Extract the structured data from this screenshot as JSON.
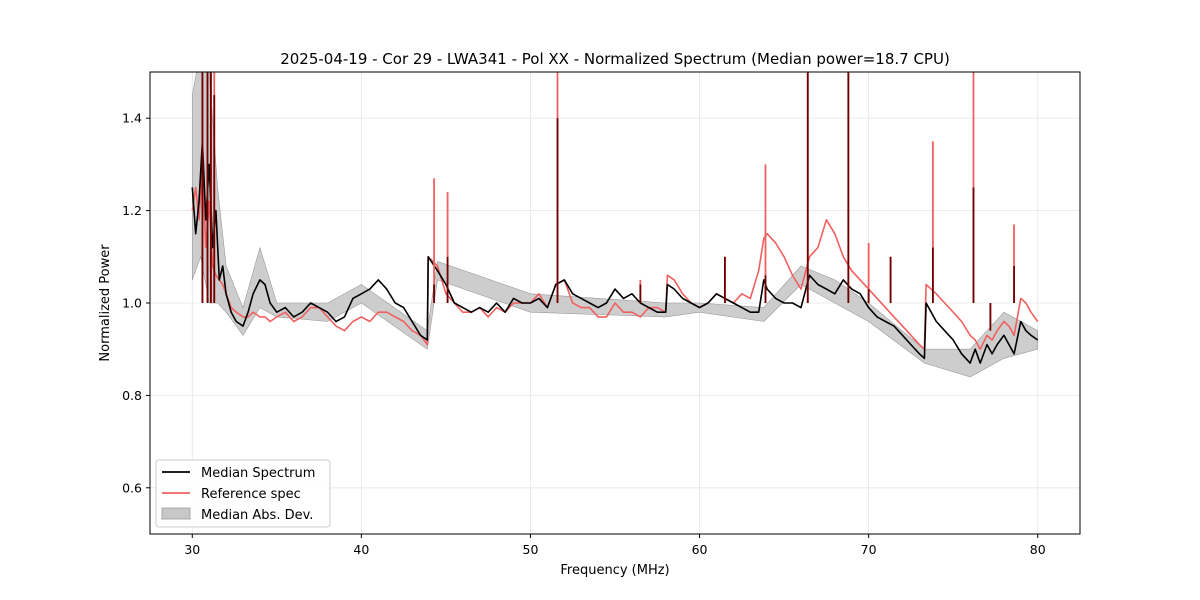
{
  "chart_data": {
    "type": "line",
    "title": "2025-04-19 - Cor 29 - LWA341 - Pol XX - Normalized Spectrum (Median power=18.7 CPU)",
    "xlabel": "Frequency (MHz)",
    "ylabel": "Normalized Power",
    "xlim": [
      27.5,
      82.5
    ],
    "ylim": [
      0.5,
      1.5
    ],
    "xticks": [
      30,
      40,
      50,
      60,
      70,
      80
    ],
    "yticks": [
      0.6,
      0.8,
      1.0,
      1.2,
      1.4
    ],
    "xtick_labels": [
      "30",
      "40",
      "50",
      "60",
      "70",
      "80"
    ],
    "ytick_labels": [
      "0.6",
      "0.8",
      "1.0",
      "1.2",
      "1.4"
    ],
    "grid": true,
    "legend_position": "lower-left",
    "legend": {
      "median": "Median Spectrum",
      "reference": "Reference spec",
      "mad": "Median Abs. Dev."
    },
    "colors": {
      "median": "#000000",
      "reference": "#f0605f",
      "mad_fill": "#c8c8c8",
      "mad_edge": "#9a9a9a",
      "grid": "#e6e6e6",
      "spike_overlap": "#6e0000"
    },
    "series": [
      {
        "name": "Median Spectrum",
        "x": [
          30.0,
          30.2,
          30.4,
          30.6,
          30.8,
          31.0,
          31.2,
          31.4,
          31.6,
          31.8,
          32.0,
          32.3,
          32.6,
          33.0,
          33.3,
          33.6,
          34.0,
          34.3,
          34.6,
          35.0,
          35.5,
          36.0,
          36.5,
          37.0,
          37.5,
          38.0,
          38.5,
          39.0,
          39.5,
          40.0,
          40.5,
          41.0,
          41.5,
          42.0,
          42.5,
          43.0,
          43.5,
          43.9,
          43.95,
          44.5,
          45.0,
          45.5,
          46.0,
          46.5,
          47.0,
          47.5,
          48.0,
          48.5,
          49.0,
          49.5,
          50.0,
          50.5,
          51.0,
          51.5,
          52.0,
          52.5,
          53.0,
          53.5,
          54.0,
          54.5,
          55.0,
          55.5,
          56.0,
          56.5,
          57.0,
          57.5,
          58.0,
          58.1,
          58.5,
          59.0,
          59.5,
          60.0,
          60.5,
          61.0,
          61.5,
          62.0,
          62.5,
          63.0,
          63.5,
          63.8,
          64.0,
          64.5,
          65.0,
          65.5,
          66.0,
          66.5,
          67.0,
          67.5,
          68.0,
          68.5,
          69.0,
          69.5,
          70.0,
          70.5,
          71.0,
          71.5,
          72.0,
          72.5,
          73.0,
          73.3,
          73.4,
          74.0,
          74.5,
          75.0,
          75.5,
          76.0,
          76.3,
          76.6,
          77.0,
          77.3,
          77.6,
          78.0,
          78.3,
          78.6,
          79.0,
          79.3,
          79.6,
          80.0
        ],
        "values": [
          1.25,
          1.15,
          1.22,
          1.35,
          1.18,
          1.3,
          1.12,
          1.2,
          1.05,
          1.08,
          1.02,
          0.98,
          0.96,
          0.95,
          0.98,
          1.02,
          1.05,
          1.04,
          1.0,
          0.98,
          0.99,
          0.97,
          0.98,
          1.0,
          0.99,
          0.98,
          0.96,
          0.97,
          1.01,
          1.02,
          1.03,
          1.05,
          1.03,
          1.0,
          0.99,
          0.96,
          0.93,
          0.92,
          1.1,
          1.07,
          1.04,
          1.0,
          0.99,
          0.98,
          0.99,
          0.98,
          1.0,
          0.98,
          1.01,
          1.0,
          1.0,
          1.01,
          0.99,
          1.04,
          1.05,
          1.02,
          1.01,
          1.0,
          0.99,
          1.0,
          1.03,
          1.01,
          1.02,
          1.0,
          0.99,
          0.98,
          0.98,
          1.04,
          1.03,
          1.01,
          1.0,
          0.99,
          1.0,
          1.02,
          1.01,
          1.0,
          0.99,
          0.98,
          0.98,
          1.05,
          1.03,
          1.01,
          1.0,
          1.0,
          0.99,
          1.06,
          1.04,
          1.03,
          1.02,
          1.05,
          1.03,
          1.02,
          0.99,
          0.97,
          0.96,
          0.95,
          0.93,
          0.91,
          0.89,
          0.88,
          1.0,
          0.96,
          0.94,
          0.92,
          0.89,
          0.87,
          0.9,
          0.87,
          0.91,
          0.89,
          0.91,
          0.93,
          0.91,
          0.89,
          0.96,
          0.94,
          0.93,
          0.92
        ]
      },
      {
        "name": "Reference spec",
        "x": [
          30.0,
          30.2,
          30.4,
          30.6,
          30.8,
          31.0,
          31.2,
          31.4,
          31.6,
          31.8,
          32.0,
          32.3,
          32.6,
          33.0,
          33.3,
          33.6,
          34.0,
          34.3,
          34.6,
          35.0,
          35.5,
          36.0,
          36.5,
          37.0,
          37.5,
          38.0,
          38.5,
          39.0,
          39.5,
          40.0,
          40.5,
          41.0,
          41.5,
          42.0,
          42.5,
          43.0,
          43.5,
          43.9,
          43.95,
          44.5,
          45.0,
          45.5,
          46.0,
          46.5,
          47.0,
          47.5,
          48.0,
          48.5,
          49.0,
          49.5,
          50.0,
          50.5,
          51.0,
          51.5,
          52.0,
          52.5,
          53.0,
          53.5,
          54.0,
          54.5,
          55.0,
          55.5,
          56.0,
          56.5,
          57.0,
          57.5,
          58.0,
          58.1,
          58.5,
          59.0,
          59.5,
          60.0,
          60.5,
          61.0,
          61.5,
          62.0,
          62.5,
          63.0,
          63.5,
          63.8,
          64.0,
          64.5,
          65.0,
          65.5,
          66.0,
          66.5,
          67.0,
          67.5,
          68.0,
          68.5,
          69.0,
          69.5,
          70.0,
          70.5,
          71.0,
          71.5,
          72.0,
          72.5,
          73.0,
          73.3,
          73.4,
          74.0,
          74.5,
          75.0,
          75.5,
          76.0,
          76.3,
          76.6,
          77.0,
          77.3,
          77.6,
          78.0,
          78.3,
          78.6,
          79.0,
          79.3,
          79.6,
          80.0
        ],
        "values": [
          1.2,
          1.25,
          1.18,
          1.3,
          1.12,
          1.22,
          1.08,
          1.06,
          1.05,
          1.04,
          1.02,
          0.99,
          0.98,
          0.97,
          0.97,
          0.98,
          0.97,
          0.97,
          0.96,
          0.97,
          0.98,
          0.96,
          0.97,
          0.99,
          0.99,
          0.97,
          0.95,
          0.94,
          0.96,
          0.97,
          0.96,
          0.98,
          0.98,
          0.97,
          0.96,
          0.94,
          0.93,
          0.91,
          1.1,
          1.08,
          1.02,
          1.0,
          0.98,
          0.98,
          0.99,
          0.97,
          0.99,
          0.98,
          1.0,
          1.0,
          1.0,
          1.02,
          0.99,
          1.04,
          1.05,
          1.0,
          0.99,
          0.99,
          0.97,
          0.97,
          1.0,
          0.98,
          0.98,
          0.97,
          0.99,
          0.99,
          0.98,
          1.06,
          1.05,
          1.02,
          1.0,
          0.99,
          1.0,
          1.02,
          1.01,
          1.0,
          1.02,
          1.01,
          1.07,
          1.14,
          1.15,
          1.13,
          1.1,
          1.06,
          1.03,
          1.1,
          1.12,
          1.18,
          1.15,
          1.1,
          1.07,
          1.05,
          1.03,
          1.01,
          0.99,
          0.97,
          0.95,
          0.93,
          0.91,
          0.9,
          1.04,
          1.02,
          1.0,
          0.98,
          0.96,
          0.93,
          0.92,
          0.9,
          0.93,
          0.92,
          0.94,
          0.96,
          0.95,
          0.93,
          1.01,
          1.0,
          0.98,
          0.96
        ]
      },
      {
        "name": "Median Abs. Dev.",
        "type": "band",
        "x": [
          30.0,
          30.5,
          31.0,
          31.5,
          32.0,
          33.0,
          34.0,
          35.0,
          38.0,
          40.0,
          43.9,
          44.5,
          50.0,
          58.0,
          60.0,
          63.8,
          66.0,
          68.0,
          70.0,
          73.3,
          76.0,
          78.0,
          80.0
        ],
        "lower": [
          1.05,
          1.1,
          1.0,
          1.0,
          0.98,
          0.93,
          0.99,
          0.97,
          0.96,
          1.0,
          0.9,
          1.05,
          0.98,
          0.97,
          0.98,
          0.96,
          1.04,
          1.0,
          0.96,
          0.87,
          0.84,
          0.88,
          0.9
        ],
        "upper": [
          1.45,
          1.55,
          1.5,
          1.25,
          1.08,
          0.99,
          1.12,
          1.0,
          1.0,
          1.04,
          0.94,
          1.09,
          1.02,
          1.0,
          1.0,
          0.99,
          1.08,
          1.05,
          1.0,
          0.9,
          0.9,
          0.98,
          0.94
        ]
      },
      {
        "name": "Spikes",
        "type": "spikes",
        "x": [
          30.6,
          30.9,
          31.1,
          31.3,
          44.3,
          45.1,
          51.6,
          56.5,
          61.5,
          63.9,
          66.4,
          68.8,
          70.0,
          71.3,
          73.8,
          76.2,
          77.2,
          78.6
        ],
        "reference_peak": [
          1.48,
          1.52,
          1.55,
          1.5,
          1.27,
          1.24,
          1.55,
          1.05,
          1.1,
          1.3,
          1.55,
          1.55,
          1.13,
          1.1,
          1.35,
          1.55,
          0.95,
          1.17
        ],
        "median_peak": [
          1.5,
          1.55,
          1.5,
          1.45,
          1.04,
          1.1,
          1.4,
          1.04,
          1.1,
          1.06,
          1.55,
          1.55,
          1.03,
          1.1,
          1.12,
          1.25,
          0.94,
          1.08
        ]
      }
    ]
  }
}
